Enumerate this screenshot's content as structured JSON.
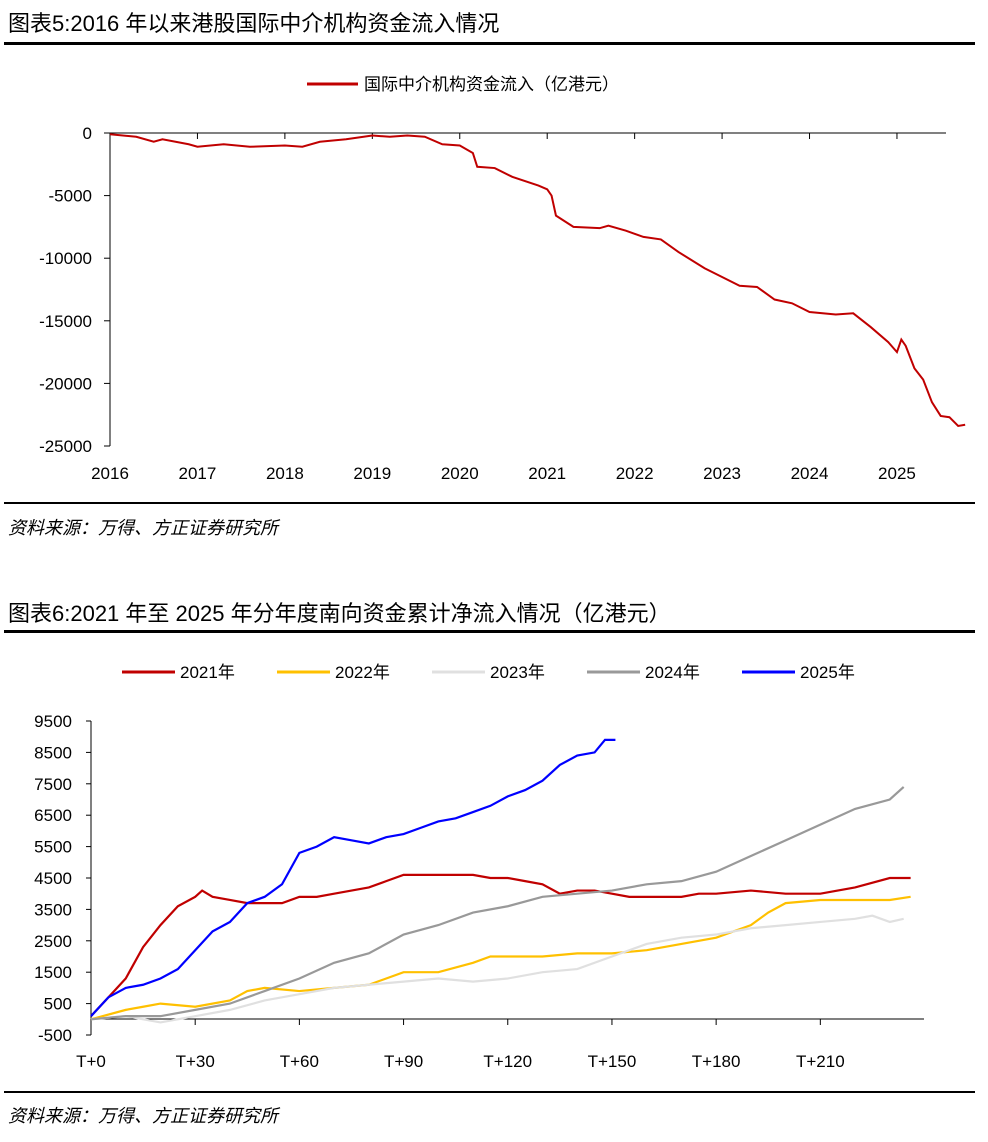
{
  "chart_data": [
    {
      "type": "line",
      "title": "图表5:2016 年以来港股国际中介机构资金流入情况",
      "source": "资料来源：万得、方正证券研究所",
      "xlabel": "",
      "ylabel": "",
      "x_ticks": [
        "2016",
        "2017",
        "2018",
        "2019",
        "2020",
        "2021",
        "2022",
        "2023",
        "2024",
        "2025"
      ],
      "y_ticks": [
        0,
        -5000,
        -10000,
        -15000,
        -20000,
        -25000
      ],
      "xlim": [
        2016,
        2025.95
      ],
      "ylim": [
        -25000,
        0
      ],
      "legend": "top-center",
      "grid": false,
      "series": [
        {
          "name": "国际中介机构资金流入（亿港元）",
          "color": "#C00000",
          "x": [
            2016.0,
            2016.3,
            2016.5,
            2016.6,
            2016.9,
            2017.0,
            2017.3,
            2017.6,
            2018.0,
            2018.2,
            2018.4,
            2018.7,
            2019.0,
            2019.2,
            2019.4,
            2019.6,
            2019.8,
            2020.0,
            2020.15,
            2020.2,
            2020.4,
            2020.6,
            2020.9,
            2021.0,
            2021.05,
            2021.1,
            2021.3,
            2021.6,
            2021.7,
            2021.9,
            2022.1,
            2022.3,
            2022.5,
            2022.8,
            2023.0,
            2023.2,
            2023.4,
            2023.6,
            2023.8,
            2024.0,
            2024.3,
            2024.5,
            2024.7,
            2024.9,
            2025.0,
            2025.05,
            2025.1,
            2025.2,
            2025.3,
            2025.4,
            2025.5,
            2025.6,
            2025.7,
            2025.78
          ],
          "y": [
            -100,
            -300,
            -700,
            -500,
            -900,
            -1100,
            -900,
            -1100,
            -1000,
            -1100,
            -700,
            -500,
            -200,
            -300,
            -200,
            -300,
            -900,
            -1000,
            -1600,
            -2700,
            -2800,
            -3500,
            -4200,
            -4500,
            -5000,
            -6600,
            -7500,
            -7600,
            -7400,
            -7800,
            -8300,
            -8500,
            -9500,
            -10800,
            -11500,
            -12200,
            -12300,
            -13300,
            -13600,
            -14300,
            -14500,
            -14400,
            -15500,
            -16700,
            -17500,
            -16500,
            -17000,
            -18800,
            -19700,
            -21500,
            -22600,
            -22700,
            -23400,
            -23300
          ]
        }
      ]
    },
    {
      "type": "line",
      "title": "图表6:2021 年至 2025 年分年度南向资金累计净流入情况（亿港元）",
      "source": "资料来源：万得、方正证券研究所",
      "xlabel": "",
      "ylabel": "",
      "x_ticks": [
        "T+0",
        "T+30",
        "T+60",
        "T+90",
        "T+120",
        "T+150",
        "T+180",
        "T+210"
      ],
      "y_ticks": [
        9500,
        8500,
        7500,
        6500,
        5500,
        4500,
        3500,
        2500,
        1500,
        500,
        -500
      ],
      "xlim": [
        0,
        240
      ],
      "ylim": [
        -500,
        9500
      ],
      "legend": "top",
      "grid": false,
      "series": [
        {
          "name": "2021年",
          "color": "#C00000",
          "x": [
            0,
            5,
            10,
            15,
            20,
            25,
            30,
            32,
            35,
            40,
            45,
            50,
            55,
            60,
            65,
            70,
            75,
            80,
            85,
            90,
            95,
            100,
            110,
            115,
            120,
            125,
            130,
            135,
            140,
            145,
            150,
            155,
            160,
            170,
            175,
            180,
            190,
            200,
            210,
            220,
            230,
            236
          ],
          "y": [
            100,
            700,
            1300,
            2300,
            3000,
            3600,
            3900,
            4100,
            3900,
            3800,
            3700,
            3700,
            3700,
            3900,
            3900,
            4000,
            4100,
            4200,
            4400,
            4600,
            4600,
            4600,
            4600,
            4500,
            4500,
            4400,
            4300,
            4000,
            4100,
            4100,
            4000,
            3900,
            3900,
            3900,
            4000,
            4000,
            4100,
            4000,
            4000,
            4200,
            4500,
            4500
          ]
        },
        {
          "name": "2022年",
          "color": "#FFC000",
          "x": [
            0,
            10,
            15,
            20,
            30,
            40,
            45,
            50,
            60,
            70,
            80,
            85,
            90,
            100,
            110,
            115,
            120,
            130,
            140,
            150,
            160,
            170,
            180,
            190,
            195,
            200,
            210,
            220,
            230,
            236
          ],
          "y": [
            0,
            300,
            400,
            500,
            400,
            600,
            900,
            1000,
            900,
            1000,
            1100,
            1300,
            1500,
            1500,
            1800,
            2000,
            2000,
            2000,
            2100,
            2100,
            2200,
            2400,
            2600,
            3000,
            3400,
            3700,
            3800,
            3800,
            3800,
            3900
          ]
        },
        {
          "name": "2023年",
          "color": "#E0E0E0",
          "x": [
            0,
            10,
            20,
            30,
            40,
            50,
            60,
            70,
            80,
            90,
            100,
            110,
            120,
            130,
            140,
            150,
            160,
            170,
            180,
            190,
            200,
            210,
            220,
            225,
            230,
            234
          ],
          "y": [
            0,
            100,
            -100,
            100,
            300,
            600,
            800,
            1000,
            1100,
            1200,
            1300,
            1200,
            1300,
            1500,
            1600,
            2000,
            2400,
            2600,
            2700,
            2900,
            3000,
            3100,
            3200,
            3300,
            3100,
            3200
          ]
        },
        {
          "name": "2024年",
          "color": "#999999",
          "x": [
            0,
            10,
            20,
            30,
            40,
            50,
            60,
            70,
            80,
            90,
            100,
            110,
            120,
            130,
            140,
            150,
            160,
            170,
            180,
            190,
            200,
            210,
            220,
            230,
            234
          ],
          "y": [
            0,
            100,
            100,
            300,
            500,
            900,
            1300,
            1800,
            2100,
            2700,
            3000,
            3400,
            3600,
            3900,
            4000,
            4100,
            4300,
            4400,
            4700,
            5200,
            5700,
            6200,
            6700,
            7000,
            7400
          ]
        },
        {
          "name": "2025年",
          "color": "#0000FF",
          "x": [
            0,
            5,
            10,
            15,
            20,
            25,
            30,
            35,
            40,
            45,
            50,
            55,
            60,
            65,
            70,
            75,
            80,
            85,
            90,
            95,
            100,
            105,
            110,
            115,
            120,
            125,
            130,
            135,
            140,
            145,
            148,
            151
          ],
          "y": [
            100,
            700,
            1000,
            1100,
            1300,
            1600,
            2200,
            2800,
            3100,
            3700,
            3900,
            4300,
            5300,
            5500,
            5800,
            5700,
            5600,
            5800,
            5900,
            6100,
            6300,
            6400,
            6600,
            6800,
            7100,
            7300,
            7600,
            8100,
            8400,
            8500,
            8900,
            8900
          ]
        }
      ]
    }
  ]
}
